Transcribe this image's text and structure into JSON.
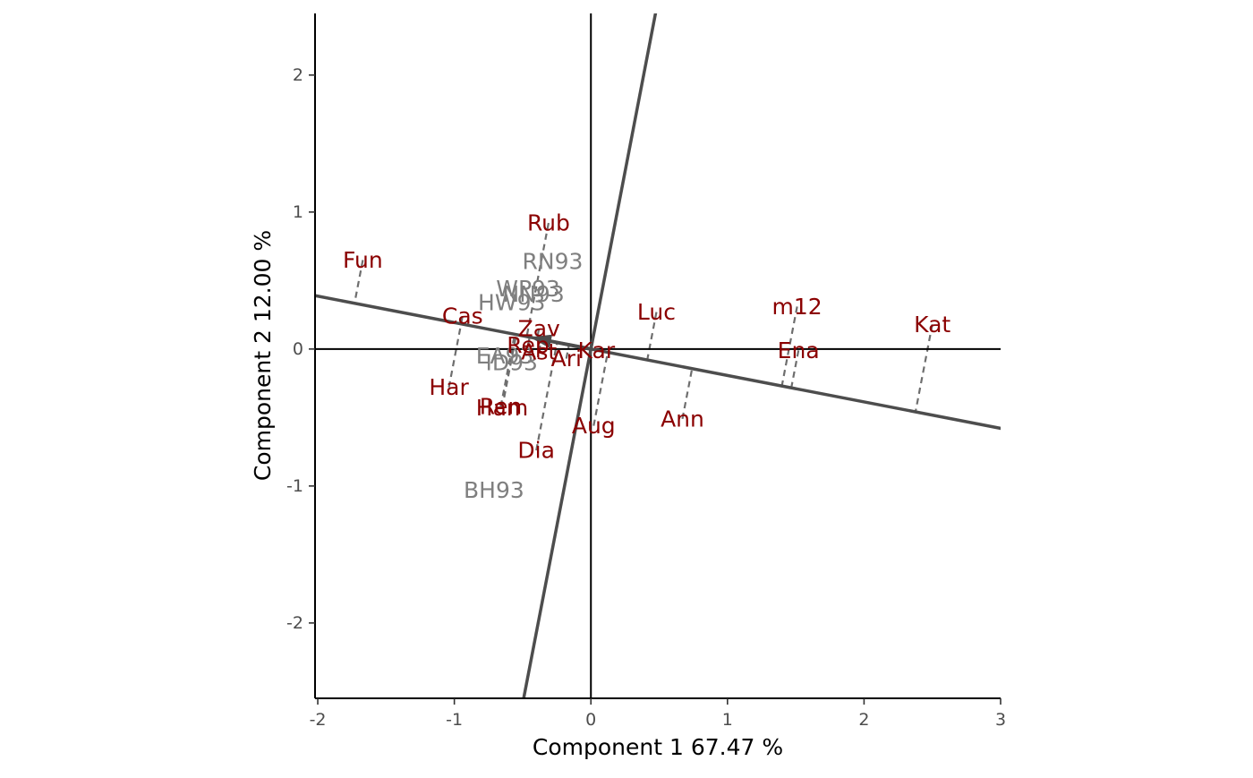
{
  "chart_data": {
    "type": "scatter",
    "subtype": "gge-biplot-mean-vs-stability",
    "title": "",
    "xlabel": "Component 1 67.47 %",
    "ylabel": "Component 2 12.00 %",
    "xlim": [
      -2.02,
      3.0
    ],
    "ylim": [
      -2.55,
      2.45
    ],
    "xticks": [
      -2,
      -1,
      0,
      1,
      2,
      3
    ],
    "yticks": [
      -2,
      -1,
      0,
      1,
      2
    ],
    "grid": false,
    "legend": "none",
    "colors": {
      "genotype": "#8b0000",
      "environment": "#7f7f7f",
      "axis_line": "#4d4d4d",
      "projection": "#6e6e6e",
      "zero_line": "#000000"
    },
    "average_environment_axis": {
      "slope": -0.193
    },
    "perpendicular_axis": {
      "slope": 5.18
    },
    "genotypes": [
      {
        "label": "Fun",
        "x": -1.67,
        "y": 0.65
      },
      {
        "label": "Rub",
        "x": -0.31,
        "y": 0.92
      },
      {
        "label": "Cas",
        "x": -0.94,
        "y": 0.24
      },
      {
        "label": "Har",
        "x": -1.04,
        "y": -0.28
      },
      {
        "label": "Zav",
        "x": -0.38,
        "y": 0.15
      },
      {
        "label": "Rep",
        "x": -0.46,
        "y": 0.03
      },
      {
        "label": "Ast",
        "x": -0.38,
        "y": -0.02
      },
      {
        "label": "Ari",
        "x": -0.18,
        "y": -0.07
      },
      {
        "label": "Kar",
        "x": 0.04,
        "y": -0.01
      },
      {
        "label": "Ren",
        "x": -0.66,
        "y": -0.42
      },
      {
        "label": "Ham",
        "x": -0.65,
        "y": -0.43
      },
      {
        "label": "Dia",
        "x": -0.4,
        "y": -0.74
      },
      {
        "label": "Aug",
        "x": 0.02,
        "y": -0.56
      },
      {
        "label": "Luc",
        "x": 0.48,
        "y": 0.27
      },
      {
        "label": "Ann",
        "x": 0.67,
        "y": -0.51
      },
      {
        "label": "m12",
        "x": 1.51,
        "y": 0.31
      },
      {
        "label": "Ena",
        "x": 1.52,
        "y": -0.01
      },
      {
        "label": "Kat",
        "x": 2.5,
        "y": 0.18
      }
    ],
    "environments": [
      {
        "label": "RN93",
        "x": -0.28,
        "y": 0.64
      },
      {
        "label": "WP93",
        "x": -0.46,
        "y": 0.44
      },
      {
        "label": "NN93",
        "x": -0.42,
        "y": 0.4
      },
      {
        "label": "HW93",
        "x": -0.58,
        "y": 0.34
      },
      {
        "label": "EA93",
        "x": -0.63,
        "y": -0.05
      },
      {
        "label": "ID93",
        "x": -0.58,
        "y": -0.1
      },
      {
        "label": "BH93",
        "x": -0.71,
        "y": -1.03
      }
    ]
  }
}
